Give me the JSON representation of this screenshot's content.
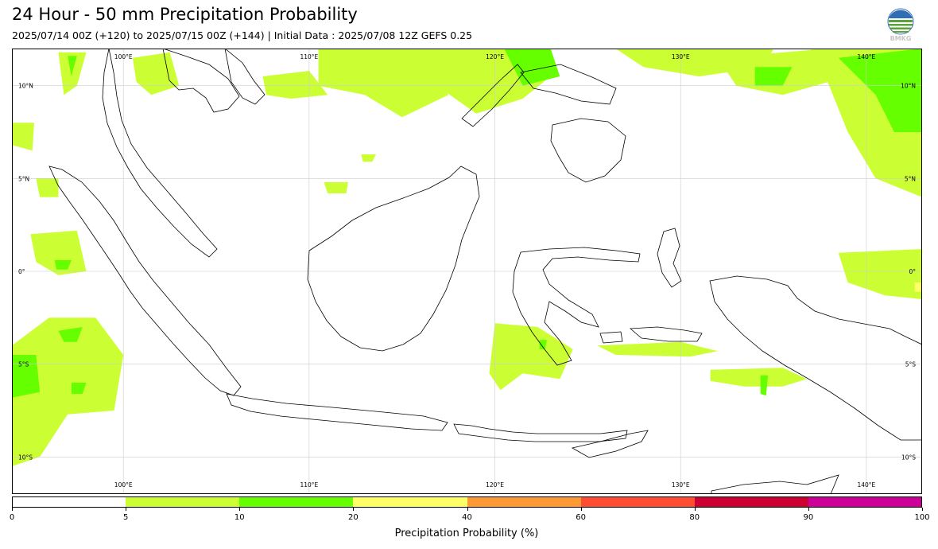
{
  "title": "24 Hour - 50 mm Precipitation Probability",
  "subtitle": "2025/07/14 00Z (+120) to 2025/07/15 00Z (+144) | Initial Data : 2025/07/08 12Z GEFS 0.25",
  "logo": {
    "icon": "bmkg-logo",
    "text": "BMKG"
  },
  "map": {
    "extent": {
      "lon": [
        94,
        143
      ],
      "lat": [
        -12,
        12
      ]
    },
    "lon_ticks": [
      {
        "value": 100,
        "label": "100°E"
      },
      {
        "value": 110,
        "label": "110°E"
      },
      {
        "value": 120,
        "label": "120°E"
      },
      {
        "value": 130,
        "label": "130°E"
      },
      {
        "value": 140,
        "label": "140°E"
      }
    ],
    "lat_ticks": [
      {
        "value": 10,
        "label": "10°N"
      },
      {
        "value": 5,
        "label": "5°N"
      },
      {
        "value": 0,
        "label": "0°"
      },
      {
        "value": -5,
        "label": "5°S"
      },
      {
        "value": -10,
        "label": "10°S"
      }
    ],
    "grid": true
  },
  "colorbar": {
    "label": "Precipitation Probability (%)",
    "bins": [
      {
        "from": 0,
        "to": 5,
        "color": "#ffffff"
      },
      {
        "from": 5,
        "to": 10,
        "color": "#ccff33"
      },
      {
        "from": 10,
        "to": 20,
        "color": "#66ff00"
      },
      {
        "from": 20,
        "to": 40,
        "color": "#ffff66"
      },
      {
        "from": 40,
        "to": 60,
        "color": "#ff9933"
      },
      {
        "from": 60,
        "to": 80,
        "color": "#ff4d33"
      },
      {
        "from": 80,
        "to": 90,
        "color": "#cc0033"
      },
      {
        "from": 90,
        "to": 100,
        "color": "#cc0099"
      }
    ],
    "ticks": [
      "0",
      "5",
      "10",
      "20",
      "40",
      "60",
      "80",
      "90",
      "100"
    ]
  },
  "precip_regions": [
    {
      "level": 5,
      "name": "andaman-sea",
      "pts": [
        [
          96.5,
          11.8
        ],
        [
          98,
          11.8
        ],
        [
          97.5,
          10
        ],
        [
          96.8,
          9.5
        ]
      ]
    },
    {
      "level": 10,
      "name": "andaman-core",
      "pts": [
        [
          97,
          11.6
        ],
        [
          97.5,
          11.6
        ],
        [
          97.2,
          10.5
        ]
      ]
    },
    {
      "level": 5,
      "name": "thailand-gulf",
      "pts": [
        [
          100.5,
          11.5
        ],
        [
          102.5,
          11.8
        ],
        [
          103,
          10
        ],
        [
          101.5,
          9.5
        ],
        [
          100.7,
          10.2
        ]
      ]
    },
    {
      "level": 5,
      "name": "north-scs",
      "pts": [
        [
          107.5,
          10.5
        ],
        [
          110,
          10.8
        ],
        [
          111,
          9.5
        ],
        [
          109,
          9.3
        ],
        [
          107.7,
          9.5
        ]
      ]
    },
    {
      "level": 5,
      "name": "north-central",
      "pts": [
        [
          110.5,
          12
        ],
        [
          116,
          12
        ],
        [
          117.5,
          9.5
        ],
        [
          115,
          8.3
        ],
        [
          113,
          9.5
        ],
        [
          110.5,
          10
        ]
      ]
    },
    {
      "level": 5,
      "name": "philippines",
      "pts": [
        [
          116,
          12
        ],
        [
          122,
          12
        ],
        [
          123,
          10.5
        ],
        [
          121.5,
          9.3
        ],
        [
          119,
          8.5
        ],
        [
          117.3,
          9.7
        ]
      ]
    },
    {
      "level": 10,
      "name": "philippines-core",
      "pts": [
        [
          120.5,
          12
        ],
        [
          123,
          12
        ],
        [
          123.5,
          10.5
        ],
        [
          121.5,
          10
        ]
      ]
    },
    {
      "level": 5,
      "name": "pacific-north",
      "pts": [
        [
          126.5,
          12
        ],
        [
          135,
          12
        ],
        [
          134.5,
          11
        ],
        [
          131,
          10.5
        ],
        [
          128,
          11
        ]
      ]
    },
    {
      "level": 5,
      "name": "pacific-ne",
      "pts": [
        [
          132,
          11.5
        ],
        [
          138,
          12
        ],
        [
          139,
          10.5
        ],
        [
          135.5,
          9.5
        ],
        [
          133,
          10
        ]
      ]
    },
    {
      "level": 10,
      "name": "pacific-ne-core",
      "pts": [
        [
          134,
          11
        ],
        [
          136,
          11
        ],
        [
          135.5,
          10
        ],
        [
          134,
          10
        ]
      ]
    },
    {
      "level": 5,
      "name": "far-east",
      "pts": [
        [
          137,
          12
        ],
        [
          143,
          12
        ],
        [
          143,
          4
        ],
        [
          140.5,
          5
        ],
        [
          139,
          7.5
        ],
        [
          138,
          10
        ]
      ]
    },
    {
      "level": 10,
      "name": "far-east-core",
      "pts": [
        [
          138.5,
          11.5
        ],
        [
          143,
          12
        ],
        [
          143,
          7.5
        ],
        [
          141.5,
          7.5
        ],
        [
          140.5,
          9.5
        ]
      ]
    },
    {
      "level": 5,
      "name": "west-sumatra-1",
      "pts": [
        [
          94,
          8
        ],
        [
          95.2,
          8
        ],
        [
          95.1,
          6.5
        ],
        [
          94,
          6.8
        ]
      ]
    },
    {
      "level": 5,
      "name": "west-sumatra-2",
      "pts": [
        [
          95.3,
          5
        ],
        [
          96.5,
          5
        ],
        [
          96.5,
          4
        ],
        [
          95.5,
          4
        ]
      ]
    },
    {
      "level": 5,
      "name": "west-sumatra-3",
      "pts": [
        [
          95,
          2
        ],
        [
          97.5,
          2.2
        ],
        [
          98,
          0
        ],
        [
          96.5,
          -0.2
        ],
        [
          95.3,
          0.5
        ]
      ]
    },
    {
      "level": 10,
      "name": "west-sumatra-core",
      "pts": [
        [
          96.3,
          0.6
        ],
        [
          97.2,
          0.6
        ],
        [
          97,
          0.1
        ],
        [
          96.4,
          0.1
        ]
      ]
    },
    {
      "level": 5,
      "name": "indian-ocean-sw",
      "pts": [
        [
          94,
          -4
        ],
        [
          96,
          -2.5
        ],
        [
          98.5,
          -2.5
        ],
        [
          100,
          -4.5
        ],
        [
          99.5,
          -7.5
        ],
        [
          97,
          -7.7
        ],
        [
          95.5,
          -10
        ],
        [
          94,
          -10.5
        ]
      ]
    },
    {
      "level": 10,
      "name": "indian-ocean-core-1",
      "pts": [
        [
          94,
          -4.5
        ],
        [
          95.3,
          -4.5
        ],
        [
          95.5,
          -6.5
        ],
        [
          94,
          -6.8
        ]
      ]
    },
    {
      "level": 10,
      "name": "indian-ocean-core-2",
      "pts": [
        [
          96.5,
          -3.2
        ],
        [
          97.8,
          -3
        ],
        [
          97.5,
          -3.8
        ],
        [
          96.8,
          -3.8
        ]
      ]
    },
    {
      "level": 10,
      "name": "indian-ocean-core-3",
      "pts": [
        [
          97.2,
          -6
        ],
        [
          98,
          -6
        ],
        [
          97.8,
          -6.6
        ],
        [
          97.2,
          -6.6
        ]
      ]
    },
    {
      "level": 5,
      "name": "borneo-nw",
      "pts": [
        [
          110.8,
          4.8
        ],
        [
          112.1,
          4.8
        ],
        [
          112,
          4.2
        ],
        [
          111,
          4.2
        ]
      ]
    },
    {
      "level": 5,
      "name": "borneo-w",
      "pts": [
        [
          112.8,
          6.3
        ],
        [
          113.6,
          6.3
        ],
        [
          113.4,
          5.9
        ],
        [
          112.9,
          5.9
        ]
      ]
    },
    {
      "level": 5,
      "name": "banda-sea",
      "pts": [
        [
          120,
          -2.8
        ],
        [
          122.3,
          -3
        ],
        [
          124.2,
          -4.2
        ],
        [
          123.5,
          -5.8
        ],
        [
          121.5,
          -5.5
        ],
        [
          120.3,
          -6.4
        ],
        [
          119.7,
          -5.5
        ]
      ]
    },
    {
      "level": 10,
      "name": "banda-core",
      "pts": [
        [
          122.4,
          -3.7
        ],
        [
          122.8,
          -3.7
        ],
        [
          122.7,
          -4.2
        ],
        [
          122.4,
          -4.2
        ]
      ]
    },
    {
      "level": 5,
      "name": "seram-papua",
      "pts": [
        [
          125.5,
          -4
        ],
        [
          130,
          -3.8
        ],
        [
          132,
          -4.3
        ],
        [
          130.5,
          -4.6
        ],
        [
          126.5,
          -4.5
        ]
      ]
    },
    {
      "level": 5,
      "name": "arafura",
      "pts": [
        [
          131.6,
          -5.3
        ],
        [
          135.5,
          -5.2
        ],
        [
          136.8,
          -5.8
        ],
        [
          135.5,
          -6.2
        ],
        [
          133.4,
          -6.2
        ],
        [
          131.6,
          -5.9
        ]
      ]
    },
    {
      "level": 10,
      "name": "aru-core",
      "pts": [
        [
          134.3,
          -5.6
        ],
        [
          134.7,
          -5.6
        ],
        [
          134.6,
          -6.7
        ],
        [
          134.3,
          -6.6
        ]
      ]
    },
    {
      "level": 5,
      "name": "papua-n",
      "pts": [
        [
          138.5,
          1
        ],
        [
          143,
          1.2
        ],
        [
          143,
          -1.5
        ],
        [
          141,
          -1.3
        ],
        [
          139,
          -0.6
        ]
      ]
    },
    {
      "level": 20,
      "name": "papua-ne-high",
      "pts": [
        [
          142.6,
          -0.6
        ],
        [
          143,
          -0.6
        ],
        [
          143,
          -1.1
        ],
        [
          142.6,
          -1.1
        ]
      ]
    }
  ]
}
